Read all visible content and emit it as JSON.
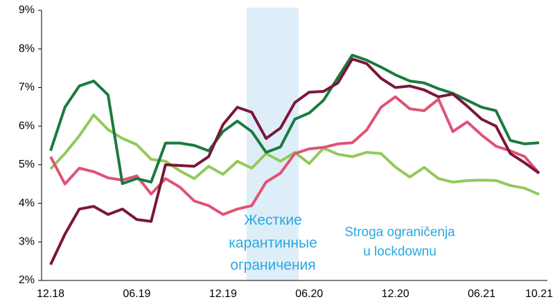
{
  "chart_data": {
    "type": "line",
    "categories": [
      "12.18",
      null,
      null,
      null,
      null,
      null,
      "06.19",
      null,
      null,
      null,
      null,
      null,
      "12.19",
      null,
      null,
      null,
      null,
      null,
      "06.20",
      null,
      null,
      null,
      null,
      null,
      "12.20",
      null,
      null,
      null,
      null,
      null,
      "06.21",
      null,
      null,
      null,
      "10.21"
    ],
    "series": [
      {
        "color": "#92c95a",
        "values": [
          4.89,
          5.29,
          5.75,
          6.29,
          5.91,
          5.68,
          5.52,
          5.14,
          5.09,
          4.84,
          4.64,
          4.96,
          4.75,
          5.09,
          4.91,
          5.29,
          5.09,
          5.32,
          5.03,
          5.43,
          5.27,
          5.21,
          5.32,
          5.29,
          4.94,
          4.68,
          4.93,
          4.64,
          4.55,
          4.59,
          4.6,
          4.59,
          4.46,
          4.39,
          4.23
        ]
      },
      {
        "color": "#e05274",
        "values": [
          5.21,
          4.5,
          4.91,
          4.82,
          4.66,
          4.6,
          4.71,
          4.24,
          4.64,
          4.42,
          4.06,
          3.94,
          3.71,
          3.85,
          3.94,
          4.55,
          4.78,
          5.29,
          5.41,
          5.45,
          5.54,
          5.57,
          5.9,
          6.49,
          6.76,
          6.45,
          6.4,
          6.7,
          5.86,
          6.11,
          5.77,
          5.48,
          5.36,
          5.21,
          4.78
        ]
      },
      {
        "color": "#1b7a3e",
        "values": [
          5.36,
          6.49,
          7.04,
          7.17,
          6.81,
          4.51,
          4.64,
          4.55,
          5.56,
          5.56,
          5.5,
          5.36,
          5.86,
          6.13,
          5.86,
          5.32,
          5.46,
          6.18,
          6.34,
          6.67,
          7.26,
          7.84,
          7.71,
          7.53,
          7.33,
          7.17,
          7.12,
          6.97,
          6.85,
          6.67,
          6.49,
          6.4,
          5.63,
          5.54,
          5.57
        ]
      },
      {
        "color": "#7a1738",
        "values": [
          2.41,
          3.2,
          3.85,
          3.92,
          3.71,
          3.85,
          3.58,
          3.53,
          5.0,
          4.98,
          4.96,
          5.21,
          6.04,
          6.49,
          6.36,
          5.68,
          5.95,
          6.61,
          6.88,
          6.9,
          7.12,
          7.74,
          7.62,
          7.24,
          7.0,
          7.04,
          6.94,
          6.76,
          6.83,
          6.52,
          6.18,
          6.0,
          5.29,
          5.05,
          4.78
        ]
      }
    ],
    "ylim": [
      2,
      9
    ],
    "yticks": [
      {
        "value": 2,
        "label": "2%"
      },
      {
        "value": 3,
        "label": "3%"
      },
      {
        "value": 4,
        "label": "4%"
      },
      {
        "value": 5,
        "label": "5%"
      },
      {
        "value": 6,
        "label": "6%"
      },
      {
        "value": 7,
        "label": "7%"
      },
      {
        "value": 8,
        "label": "8%"
      },
      {
        "value": 9,
        "label": "9%"
      }
    ],
    "annotations": [
      {
        "lines": [
          "Жесткие",
          "карантинные",
          "ограничения"
        ]
      },
      {
        "lines": [
          "Stroga ograničenja",
          "u lockdownu"
        ]
      }
    ]
  }
}
